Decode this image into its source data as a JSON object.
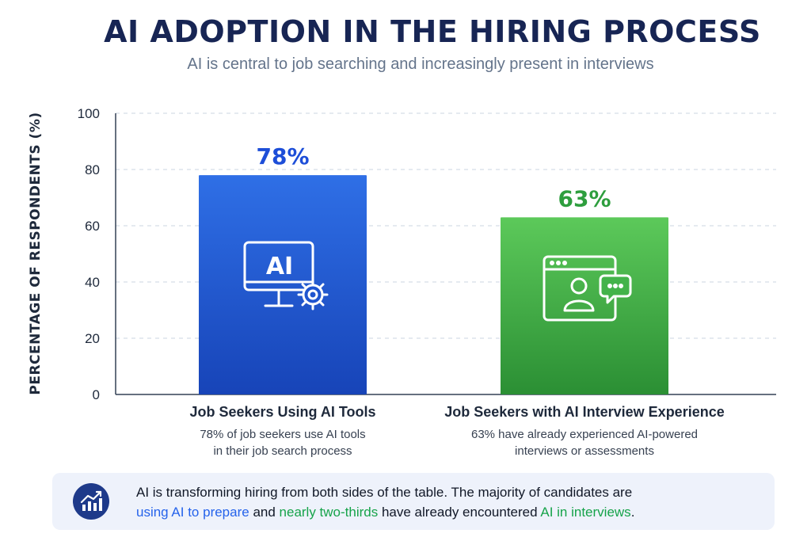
{
  "header": {
    "title": "AI ADOPTION IN THE HIRING PROCESS",
    "subtitle": "AI is central to job searching and increasingly present in interviews"
  },
  "colors": {
    "blue": "#1d4ed8",
    "blue_light": "#2f6fe6",
    "green": "#2e9e3e",
    "green_light": "#5cc95a",
    "navy": "#172554"
  },
  "chart_data": {
    "type": "bar",
    "categories": [
      "Job Seekers Using AI Tools",
      "Job Seekers with AI Interview Experience"
    ],
    "values": [
      78,
      63
    ],
    "value_labels": [
      "78%",
      "63%"
    ],
    "descriptions": [
      [
        "78% of job seekers use AI tools",
        "in their job search process"
      ],
      [
        "63% have already experienced AI-powered",
        "interviews or assessments"
      ]
    ],
    "icons": [
      "ai-monitor-gear-icon",
      "video-interview-chat-icon"
    ],
    "ylabel": "PERCENTAGE OF RESPONDENTS (%)",
    "ylim": [
      0,
      100
    ],
    "yticks": [
      0,
      20,
      40,
      60,
      80,
      100
    ],
    "grid": true
  },
  "callout": {
    "icon": "growth-chart-icon",
    "t1": "AI is transforming hiring from both sides of the table. The majority of candidates are",
    "t2": "using AI to prepare",
    "t3": " and ",
    "t4": "nearly two-thirds",
    "t5": " have already encountered ",
    "t6": "AI in interviews",
    "t7": "."
  }
}
